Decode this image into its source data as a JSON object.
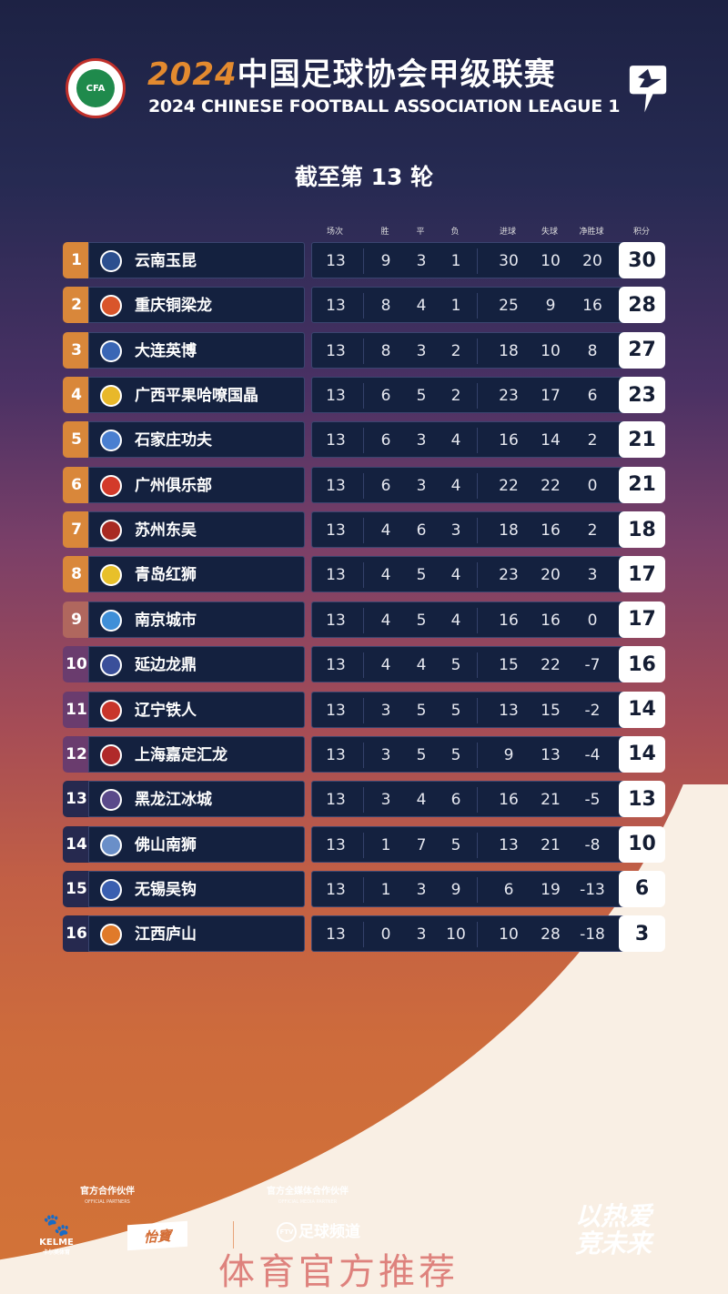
{
  "header": {
    "year": "2024",
    "title_cn": "中国足球协会甲级联赛",
    "title_en": "2024 CHINESE FOOTBALL ASSOCIATION LEAGUE 1",
    "cfa_logo_text": "CFA"
  },
  "round_label": "截至第 13 轮",
  "columns": [
    "场次",
    "胜",
    "平",
    "负",
    "进球",
    "失球",
    "净胜球",
    "积分"
  ],
  "teams": [
    {
      "rank": "1",
      "name": "云南玉昆",
      "played": "13",
      "w": "9",
      "d": "3",
      "l": "1",
      "gf": "30",
      "ga": "10",
      "gd": "20",
      "pts": "30",
      "logo_color": "#2c4f8f"
    },
    {
      "rank": "2",
      "name": "重庆铜梁龙",
      "played": "13",
      "w": "8",
      "d": "4",
      "l": "1",
      "gf": "25",
      "ga": "9",
      "gd": "16",
      "pts": "28",
      "logo_color": "#d9552b"
    },
    {
      "rank": "3",
      "name": "大连英博",
      "played": "13",
      "w": "8",
      "d": "3",
      "l": "2",
      "gf": "18",
      "ga": "10",
      "gd": "8",
      "pts": "27",
      "logo_color": "#3a66b5"
    },
    {
      "rank": "4",
      "name": "广西平果哈嘹国晶",
      "played": "13",
      "w": "6",
      "d": "5",
      "l": "2",
      "gf": "23",
      "ga": "17",
      "gd": "6",
      "pts": "23",
      "logo_color": "#e8b82a"
    },
    {
      "rank": "5",
      "name": "石家庄功夫",
      "played": "13",
      "w": "6",
      "d": "3",
      "l": "4",
      "gf": "16",
      "ga": "14",
      "gd": "2",
      "pts": "21",
      "logo_color": "#4a7fd0"
    },
    {
      "rank": "6",
      "name": "广州俱乐部",
      "played": "13",
      "w": "6",
      "d": "3",
      "l": "4",
      "gf": "22",
      "ga": "22",
      "gd": "0",
      "pts": "21",
      "logo_color": "#d33a2a"
    },
    {
      "rank": "7",
      "name": "苏州东吴",
      "played": "13",
      "w": "4",
      "d": "6",
      "l": "3",
      "gf": "18",
      "ga": "16",
      "gd": "2",
      "pts": "18",
      "logo_color": "#a82a22"
    },
    {
      "rank": "8",
      "name": "青岛红狮",
      "played": "13",
      "w": "4",
      "d": "5",
      "l": "4",
      "gf": "23",
      "ga": "20",
      "gd": "3",
      "pts": "17",
      "logo_color": "#e8c02a"
    },
    {
      "rank": "9",
      "name": "南京城市",
      "played": "13",
      "w": "4",
      "d": "5",
      "l": "4",
      "gf": "16",
      "ga": "16",
      "gd": "0",
      "pts": "17",
      "logo_color": "#3f8fd8"
    },
    {
      "rank": "10",
      "name": "延边龙鼎",
      "played": "13",
      "w": "4",
      "d": "4",
      "l": "5",
      "gf": "15",
      "ga": "22",
      "gd": "-7",
      "pts": "16",
      "logo_color": "#3a4f9a"
    },
    {
      "rank": "11",
      "name": "辽宁铁人",
      "played": "13",
      "w": "3",
      "d": "5",
      "l": "5",
      "gf": "13",
      "ga": "15",
      "gd": "-2",
      "pts": "14",
      "logo_color": "#c8352a"
    },
    {
      "rank": "12",
      "name": "上海嘉定汇龙",
      "played": "13",
      "w": "3",
      "d": "5",
      "l": "5",
      "gf": "9",
      "ga": "13",
      "gd": "-4",
      "pts": "14",
      "logo_color": "#b02a2a"
    },
    {
      "rank": "13",
      "name": "黑龙江冰城",
      "played": "13",
      "w": "3",
      "d": "4",
      "l": "6",
      "gf": "16",
      "ga": "21",
      "gd": "-5",
      "pts": "13",
      "logo_color": "#5a4a8a"
    },
    {
      "rank": "14",
      "name": "佛山南狮",
      "played": "13",
      "w": "1",
      "d": "7",
      "l": "5",
      "gf": "13",
      "ga": "21",
      "gd": "-8",
      "pts": "10",
      "logo_color": "#6a8fc8"
    },
    {
      "rank": "15",
      "name": "无锡吴钩",
      "played": "13",
      "w": "1",
      "d": "3",
      "l": "9",
      "gf": "6",
      "ga": "19",
      "gd": "-13",
      "pts": "6",
      "logo_color": "#3a5fb0"
    },
    {
      "rank": "16",
      "name": "江西庐山",
      "played": "13",
      "w": "0",
      "d": "3",
      "l": "10",
      "gf": "10",
      "ga": "28",
      "gd": "-18",
      "pts": "3",
      "logo_color": "#e07a2a"
    }
  ],
  "rank_colors": {
    "top": "#d9873a",
    "mid": "#b0675e",
    "low": "#6a3c6e",
    "bottom": "#26294f"
  },
  "footer": {
    "partners_cn": "官方合作伙伴",
    "partners_en": "OFFICIAL PARTNERS",
    "media_cn": "官方全媒体合作伙伴",
    "media_en": "OFFICIAL MEDIA PARTNER",
    "kelme": "KELME",
    "kelme_cn": "卡尔美体育",
    "yibao": "怡寶",
    "ftv_badge": "FTV",
    "ftv": "足球频道",
    "slogan_line1": "以热爱",
    "slogan_line2": "竞未来",
    "watermark": "体育官方推荐"
  }
}
